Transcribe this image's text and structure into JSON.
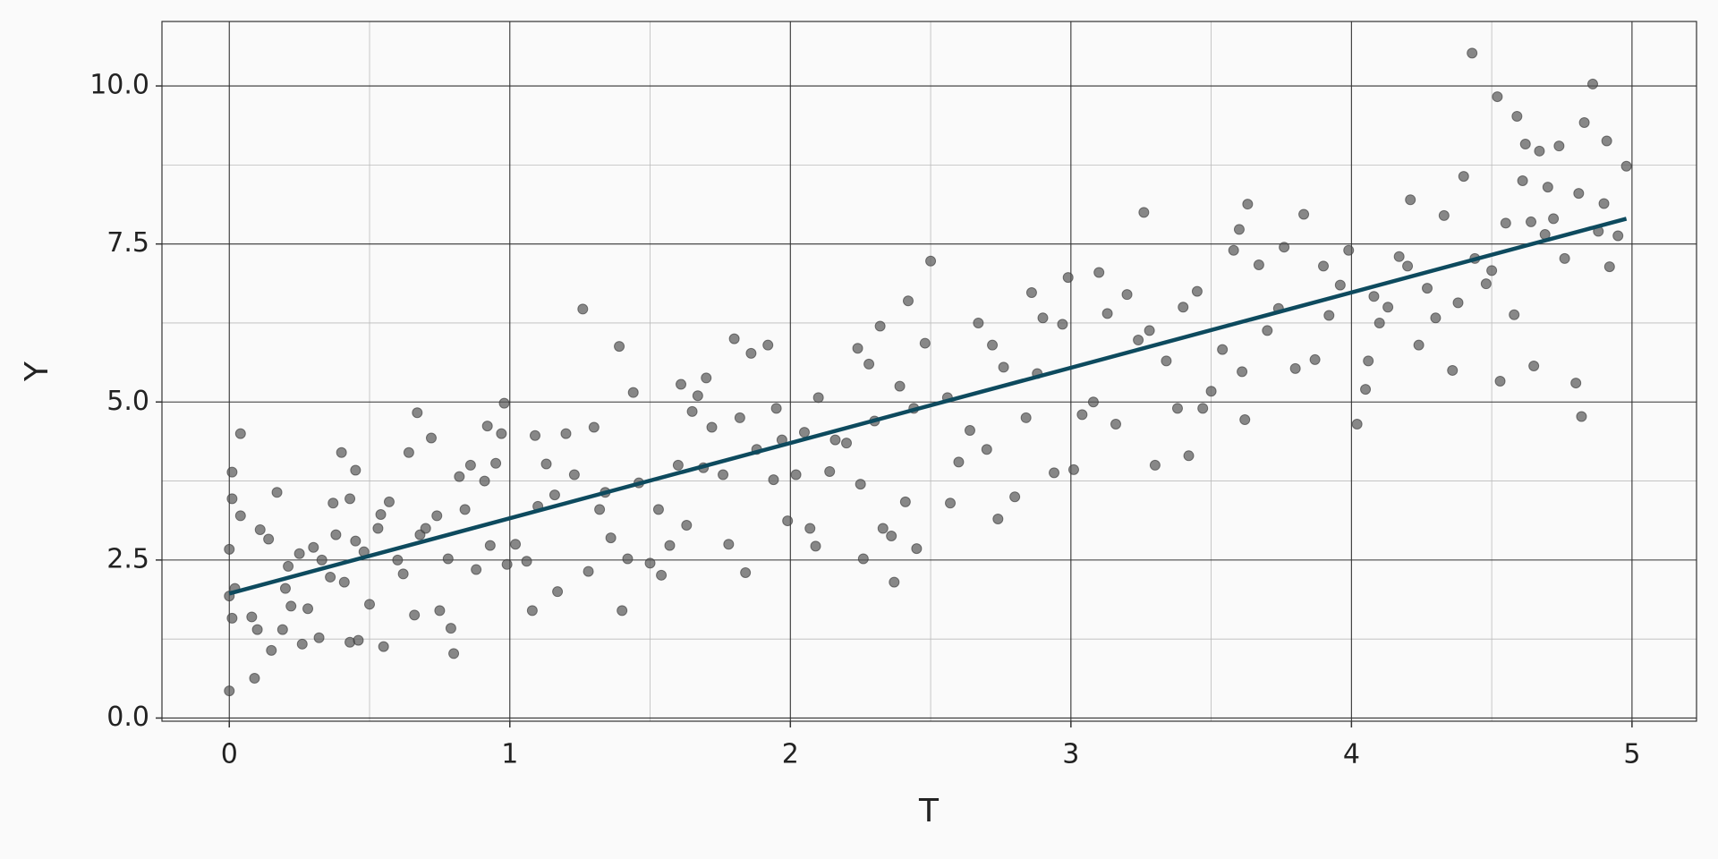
{
  "chart_data": {
    "type": "scatter",
    "xlabel": "T",
    "ylabel": "Y",
    "xlim": [
      -0.24,
      5.23
    ],
    "ylim": [
      -0.05,
      11.02
    ],
    "xticks": [
      0,
      1,
      2,
      3,
      4,
      5
    ],
    "yticks": [
      {
        "value": 0,
        "label": "0.0"
      },
      {
        "value": 2.5,
        "label": "2.5"
      },
      {
        "value": 5,
        "label": "5.0"
      },
      {
        "value": 7.5,
        "label": "7.5"
      },
      {
        "value": 10,
        "label": "10.0"
      }
    ],
    "xminorticks": [
      0.5,
      1.5,
      2.5,
      3.5,
      4.5
    ],
    "yminorticks": [
      1.25,
      3.75,
      6.25,
      8.75
    ],
    "grid": true,
    "series": [
      {
        "color": "#555555",
        "x": [
          0.0,
          0.01,
          0.01,
          0.0,
          0.01,
          0.02,
          0.0,
          0.04,
          0.04,
          0.08,
          0.09,
          0.1,
          0.11,
          0.14,
          0.15,
          0.17,
          0.19,
          0.2,
          0.21,
          0.22,
          0.25,
          0.26,
          0.28,
          0.3,
          0.32,
          0.33,
          0.36,
          0.37,
          0.38,
          0.4,
          0.41,
          0.43,
          0.43,
          0.45,
          0.45,
          0.46,
          0.48,
          0.5,
          0.53,
          0.54,
          0.55,
          0.57,
          0.6,
          0.62,
          0.64,
          0.66,
          0.67,
          0.68,
          0.7,
          0.72,
          0.74,
          0.75,
          0.78,
          0.79,
          0.8,
          0.82,
          0.84,
          0.86,
          0.88,
          0.91,
          0.92,
          0.93,
          0.95,
          0.97,
          0.98,
          0.99,
          1.02,
          1.06,
          1.08,
          1.09,
          1.1,
          1.13,
          1.16,
          1.17,
          1.2,
          1.23,
          1.26,
          1.28,
          1.3,
          1.32,
          1.34,
          1.36,
          1.39,
          1.4,
          1.42,
          1.44,
          1.46,
          1.5,
          1.53,
          1.54,
          1.57,
          1.6,
          1.61,
          1.63,
          1.65,
          1.67,
          1.69,
          1.7,
          1.72,
          1.76,
          1.78,
          1.8,
          1.82,
          1.84,
          1.86,
          1.88,
          1.92,
          1.94,
          1.95,
          1.97,
          1.99,
          2.02,
          2.05,
          2.07,
          2.09,
          2.1,
          2.14,
          2.16,
          2.2,
          2.24,
          2.25,
          2.26,
          2.28,
          2.3,
          2.32,
          2.33,
          2.36,
          2.37,
          2.39,
          2.41,
          2.42,
          2.44,
          2.45,
          2.48,
          2.5,
          2.56,
          2.57,
          2.6,
          2.64,
          2.67,
          2.7,
          2.72,
          2.74,
          2.76,
          2.8,
          2.84,
          2.86,
          2.88,
          2.9,
          2.94,
          2.97,
          2.99,
          3.01,
          3.04,
          3.08,
          3.1,
          3.13,
          3.16,
          3.2,
          3.24,
          3.26,
          3.28,
          3.3,
          3.34,
          3.38,
          3.4,
          3.42,
          3.45,
          3.47,
          3.5,
          3.54,
          3.58,
          3.6,
          3.61,
          3.62,
          3.63,
          3.67,
          3.7,
          3.74,
          3.76,
          3.8,
          3.83,
          3.87,
          3.9,
          3.92,
          3.96,
          3.99,
          4.02,
          4.05,
          4.06,
          4.08,
          4.1,
          4.13,
          4.17,
          4.2,
          4.21,
          4.24,
          4.27,
          4.3,
          4.33,
          4.36,
          4.38,
          4.4,
          4.43,
          4.44,
          4.48,
          4.5,
          4.52,
          4.53,
          4.55,
          4.58,
          4.59,
          4.61,
          4.62,
          4.64,
          4.65,
          4.67,
          4.69,
          4.7,
          4.72,
          4.74,
          4.76,
          4.8,
          4.81,
          4.82,
          4.83,
          4.86,
          4.88,
          4.9,
          4.91,
          4.92,
          4.95,
          4.98
        ],
        "values": [
          2.67,
          3.89,
          3.47,
          1.93,
          1.58,
          2.05,
          0.43,
          4.5,
          3.2,
          1.6,
          0.63,
          1.4,
          2.98,
          2.83,
          1.07,
          3.57,
          1.4,
          2.05,
          2.4,
          1.77,
          2.6,
          1.17,
          1.73,
          2.7,
          1.27,
          2.5,
          2.23,
          3.4,
          2.9,
          4.2,
          2.15,
          3.47,
          1.2,
          2.8,
          3.92,
          1.23,
          2.63,
          1.8,
          3.0,
          3.22,
          1.13,
          3.42,
          2.5,
          2.28,
          4.2,
          1.63,
          4.83,
          2.9,
          3.0,
          4.43,
          3.2,
          1.7,
          2.52,
          1.42,
          1.02,
          3.82,
          3.3,
          4.0,
          2.35,
          3.75,
          4.62,
          2.73,
          4.03,
          4.5,
          4.98,
          2.43,
          2.75,
          2.48,
          1.7,
          4.47,
          3.35,
          4.02,
          3.53,
          2.0,
          4.5,
          3.85,
          6.47,
          2.32,
          4.6,
          3.3,
          3.57,
          2.85,
          5.88,
          1.7,
          2.52,
          5.15,
          3.72,
          2.45,
          3.3,
          2.26,
          2.73,
          4.0,
          5.28,
          3.05,
          4.85,
          5.1,
          3.96,
          5.38,
          4.6,
          3.85,
          2.75,
          6.0,
          4.75,
          2.3,
          5.77,
          4.25,
          5.9,
          3.77,
          4.9,
          4.4,
          3.12,
          3.85,
          4.52,
          3.0,
          2.72,
          5.07,
          3.9,
          4.4,
          4.35,
          5.85,
          3.7,
          2.52,
          5.6,
          4.7,
          6.2,
          3.0,
          2.88,
          2.15,
          5.25,
          3.42,
          6.6,
          4.9,
          2.68,
          5.93,
          7.23,
          5.07,
          3.4,
          4.05,
          4.55,
          6.25,
          4.25,
          5.9,
          3.15,
          5.55,
          3.5,
          4.75,
          6.73,
          5.45,
          6.33,
          3.88,
          6.23,
          6.97,
          3.93,
          4.8,
          5.0,
          7.05,
          6.4,
          4.65,
          6.7,
          5.98,
          8.0,
          6.13,
          4.0,
          5.65,
          4.9,
          6.5,
          4.15,
          6.75,
          4.9,
          5.17,
          5.83,
          7.4,
          7.73,
          5.48,
          4.72,
          8.13,
          7.17,
          6.13,
          6.48,
          7.45,
          5.53,
          7.97,
          5.67,
          7.15,
          6.37,
          6.85,
          7.4,
          4.65,
          5.2,
          5.65,
          6.67,
          6.25,
          6.5,
          7.3,
          7.15,
          8.2,
          5.9,
          6.8,
          6.33,
          7.95,
          5.5,
          6.57,
          8.57,
          10.52,
          7.27,
          6.87,
          7.08,
          9.83,
          5.33,
          7.83,
          6.38,
          9.52,
          8.5,
          9.08,
          7.85,
          5.57,
          8.97,
          7.65,
          8.4,
          7.9,
          9.05,
          7.27,
          5.3,
          8.3,
          4.77,
          9.42,
          10.03,
          7.7,
          8.14,
          9.13,
          7.14,
          7.63,
          8.73
        ]
      }
    ],
    "line": {
      "color": "#0d4a5e",
      "x": [
        0,
        4.98
      ],
      "y": [
        1.97,
        7.9
      ]
    }
  }
}
